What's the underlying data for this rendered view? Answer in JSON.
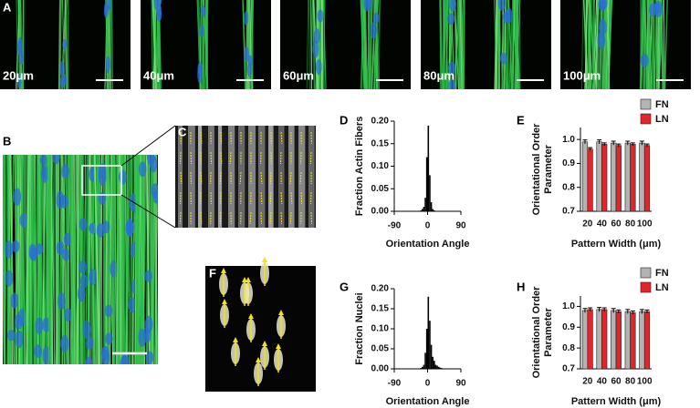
{
  "panel_labels": [
    "A",
    "B",
    "C",
    "D",
    "E",
    "F",
    "G",
    "H"
  ],
  "image_labels": [
    "20μm",
    "40μm",
    "60μm",
    "80μm",
    "100μm"
  ],
  "chart_data": [
    {
      "type": "histogram",
      "xlabel": "Orientation Angle",
      "ylabel": "Fraction Actin Fibers",
      "bins": [
        -20,
        -16,
        -12,
        -8,
        -4,
        0,
        4,
        8,
        12,
        16,
        20
      ],
      "values": [
        0.002,
        0.005,
        0.01,
        0.03,
        0.12,
        0.19,
        0.08,
        0.02,
        0.005,
        0.002
      ],
      "color": "#000000",
      "xlim": [
        -90,
        90
      ],
      "xticks": [
        -90,
        0,
        90
      ],
      "ylim": [
        0,
        0.2
      ],
      "yticks": [
        {
          "value": 0,
          "label": "0.00"
        },
        {
          "value": 0.05,
          "label": "0.05"
        },
        {
          "value": 0.1,
          "label": "0.10"
        },
        {
          "value": 0.15,
          "label": "0.15"
        },
        {
          "value": 0.2,
          "label": "0.20"
        }
      ]
    },
    {
      "type": "bar",
      "xlabel": "Pattern Width (μm)",
      "ylabel_lines": [
        "Orientational Order",
        "Parameter"
      ],
      "categories": [
        "20",
        "40",
        "60",
        "80",
        "100"
      ],
      "series": [
        {
          "name": "FN",
          "color": "#b3b3b3",
          "values": [
            0.99,
            0.99,
            0.985,
            0.985,
            0.985
          ],
          "errors": [
            0.008,
            0.008,
            0.008,
            0.008,
            0.008
          ]
        },
        {
          "name": "LN",
          "color": "#e0262b",
          "values": [
            0.96,
            0.98,
            0.975,
            0.98,
            0.975
          ],
          "errors": [
            0.006,
            0.006,
            0.006,
            0.006,
            0.006
          ]
        }
      ],
      "ylim": [
        0.7,
        1.05
      ],
      "yticks": [
        0.7,
        0.8,
        0.9,
        {
          "value": 1,
          "label": "1.0"
        }
      ],
      "legend": "top-right"
    },
    {
      "type": "histogram",
      "xlabel": "Orientation Angle",
      "ylabel": "Fraction Nuclei",
      "bins": [
        -20,
        -16,
        -12,
        -8,
        -4,
        0,
        4,
        8,
        12,
        16,
        20,
        24,
        28,
        32,
        36,
        40
      ],
      "values": [
        0.002,
        0.005,
        0.01,
        0.04,
        0.1,
        0.18,
        0.12,
        0.06,
        0.03,
        0.02,
        0.01,
        0.008,
        0.005,
        0.003,
        0.002
      ],
      "color": "#000000",
      "xlim": [
        -90,
        90
      ],
      "xticks": [
        -90,
        0,
        90
      ],
      "ylim": [
        0,
        0.2
      ],
      "yticks": [
        {
          "value": 0,
          "label": "0.00"
        },
        {
          "value": 0.05,
          "label": "0.05"
        },
        {
          "value": 0.1,
          "label": "0.10"
        },
        {
          "value": 0.15,
          "label": "0.15"
        },
        {
          "value": 0.2,
          "label": "0.20"
        }
      ]
    },
    {
      "type": "bar",
      "xlabel": "Pattern Width (μm)",
      "ylabel_lines": [
        "Orientational Order",
        "Parameter"
      ],
      "categories": [
        "20",
        "40",
        "60",
        "80",
        "100"
      ],
      "series": [
        {
          "name": "FN",
          "color": "#b3b3b3",
          "values": [
            0.98,
            0.985,
            0.98,
            0.975,
            0.975
          ],
          "errors": [
            0.01,
            0.01,
            0.01,
            0.01,
            0.01
          ]
        },
        {
          "name": "LN",
          "color": "#e0262b",
          "values": [
            0.985,
            0.985,
            0.975,
            0.97,
            0.975
          ],
          "errors": [
            0.008,
            0.008,
            0.008,
            0.008,
            0.008
          ]
        }
      ],
      "ylim": [
        0.7,
        1.05
      ],
      "yticks": [
        0.7,
        0.8,
        0.9,
        {
          "value": 1,
          "label": "1.0"
        }
      ],
      "legend": "top-right"
    }
  ]
}
